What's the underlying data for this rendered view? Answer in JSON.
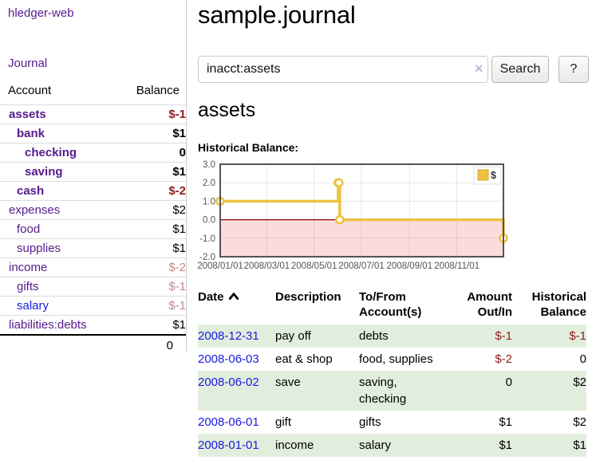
{
  "sidebar": {
    "app_title": "hledger-web",
    "journal_label": "Journal",
    "table": {
      "account_header": "Account",
      "balance_header": "Balance",
      "rows": [
        {
          "account": "assets",
          "indent": 0,
          "bold": true,
          "balance": "$-1",
          "balance_style": "negative-strong"
        },
        {
          "account": "bank",
          "indent": 1,
          "bold": true,
          "balance": "$1",
          "balance_style": "strong"
        },
        {
          "account": "checking",
          "indent": 2,
          "bold": true,
          "balance": "0",
          "balance_style": "strong"
        },
        {
          "account": "saving",
          "indent": 2,
          "bold": true,
          "balance": "$1",
          "balance_style": "strong"
        },
        {
          "account": "cash",
          "indent": 1,
          "bold": true,
          "balance": "$-2",
          "balance_style": "negative-strong"
        },
        {
          "account": "expenses",
          "indent": 0,
          "bold": false,
          "balance": "$2",
          "balance_style": "normal"
        },
        {
          "account": "food",
          "indent": 1,
          "bold": false,
          "balance": "$1",
          "balance_style": "normal"
        },
        {
          "account": "supplies",
          "indent": 1,
          "bold": false,
          "balance": "$1",
          "balance_style": "normal"
        },
        {
          "account": "income",
          "indent": 0,
          "bold": false,
          "balance": "$-2",
          "balance_style": "negative-muted"
        },
        {
          "account": "gifts",
          "indent": 1,
          "bold": false,
          "balance": "$-1",
          "balance_style": "negative-muted"
        },
        {
          "account": "salary",
          "indent": 1,
          "bold": false,
          "link_color": "blue",
          "balance": "$-1",
          "balance_style": "negative-muted"
        },
        {
          "account": "liabilities:debts",
          "indent": 0,
          "bold": false,
          "balance": "$1",
          "balance_style": "normal"
        }
      ],
      "total": "0"
    }
  },
  "header": {
    "title": "sample.journal"
  },
  "search": {
    "value": "inacct:assets",
    "clear_icon": "×",
    "button_label": "Search",
    "help_label": "?"
  },
  "main": {
    "account_heading": "assets",
    "chart_label": "Historical Balance:"
  },
  "chart_data": {
    "type": "line",
    "title": "Historical Balance",
    "step": true,
    "x_range": [
      "2008-01-01",
      "2008-12-31"
    ],
    "y_range": [
      -2,
      3
    ],
    "x_ticks": [
      "2008/01/01",
      "2008/03/01",
      "2008/05/01",
      "2008/07/01",
      "2008/09/01",
      "2008/11/01"
    ],
    "y_ticks": [
      3.0,
      2.0,
      1.0,
      0.0,
      -1.0,
      -2.0
    ],
    "series": [
      {
        "name": "$",
        "color": "#edc240",
        "points": [
          [
            "2008-01-01",
            1
          ],
          [
            "2008-06-01",
            2
          ],
          [
            "2008-06-02",
            2
          ],
          [
            "2008-06-03",
            0
          ],
          [
            "2008-12-31",
            -1
          ]
        ]
      }
    ],
    "grid": true,
    "legend_position": "top-right",
    "negative_region_color": "#fbdcdc",
    "zero_line_color": "#8b0000"
  },
  "register": {
    "columns": [
      "Date",
      "Description",
      "To/From Account(s)",
      "Amount Out/In",
      "Historical Balance"
    ],
    "sort": {
      "column": "Date",
      "direction": "ascending",
      "icon": "chevron-up-icon"
    },
    "rows": [
      {
        "date": "2008-12-31",
        "description": "pay off",
        "accounts": "debts",
        "amount": "$-1",
        "balance": "$-1"
      },
      {
        "date": "2008-06-03",
        "description": "eat & shop",
        "accounts": "food, supplies",
        "amount": "$-2",
        "balance": "0"
      },
      {
        "date": "2008-06-02",
        "description": "save",
        "accounts": "saving, checking",
        "amount": "0",
        "balance": "$2"
      },
      {
        "date": "2008-06-01",
        "description": "gift",
        "accounts": "gifts",
        "amount": "$1",
        "balance": "$2"
      },
      {
        "date": "2008-01-01",
        "description": "income",
        "accounts": "salary",
        "amount": "$1",
        "balance": "$1"
      }
    ]
  },
  "colors": {
    "link_purple": "#551a8b",
    "link_blue": "#1a1ade",
    "negative": "#8f1d1d",
    "negative_muted": "#c08a8a",
    "row_highlight": "#e2eedd",
    "chart_line": "#edc240",
    "chart_negative_bg": "#fbdcdc",
    "chart_zero_line": "#8b0000",
    "chart_border": "#545454"
  }
}
